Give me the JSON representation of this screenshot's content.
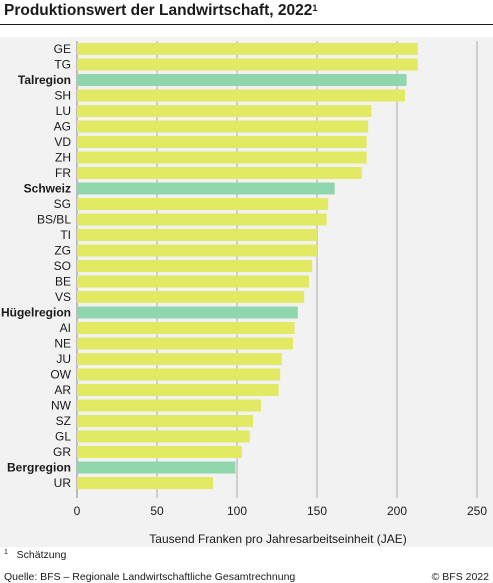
{
  "title": "Produktionswert der Landwirtschaft, 2022",
  "title_footnote_mark": "1",
  "footnote_mark": "1",
  "footnote_text": "Schätzung",
  "source": "Quelle: BFS – Regionale Landwirtschaftliche Gesamtrechnung",
  "copyright": "© BFS 2022",
  "colors": {
    "canton": "#e1ea62",
    "region": "#8fd6ac",
    "background": "#f2f2f2",
    "grid": "#9a9a9a"
  },
  "chart_data": {
    "type": "bar",
    "orientation": "horizontal",
    "xlabel": "Tausend Franken pro Jahresarbeitseinheit (JAE)",
    "xlim": [
      0,
      250
    ],
    "xticks": [
      0,
      50,
      100,
      150,
      200,
      250
    ],
    "grid": true,
    "categories": [
      "GE",
      "TG",
      "Talregion",
      "SH",
      "LU",
      "AG",
      "VD",
      "ZH",
      "FR",
      "Schweiz",
      "SG",
      "BS/BL",
      "TI",
      "ZG",
      "SO",
      "BE",
      "VS",
      "Hügelregion",
      "AI",
      "NE",
      "JU",
      "OW",
      "AR",
      "NW",
      "SZ",
      "GL",
      "GR",
      "Bergregion",
      "UR"
    ],
    "values": [
      213,
      213,
      206,
      205,
      184,
      182,
      181,
      181,
      178,
      161,
      157,
      156,
      150,
      150,
      147,
      145,
      142,
      138,
      136,
      135,
      128,
      127,
      126,
      115,
      110,
      108,
      103,
      99,
      85
    ],
    "highlight": [
      "Talregion",
      "Schweiz",
      "Hügelregion",
      "Bergregion"
    ]
  }
}
